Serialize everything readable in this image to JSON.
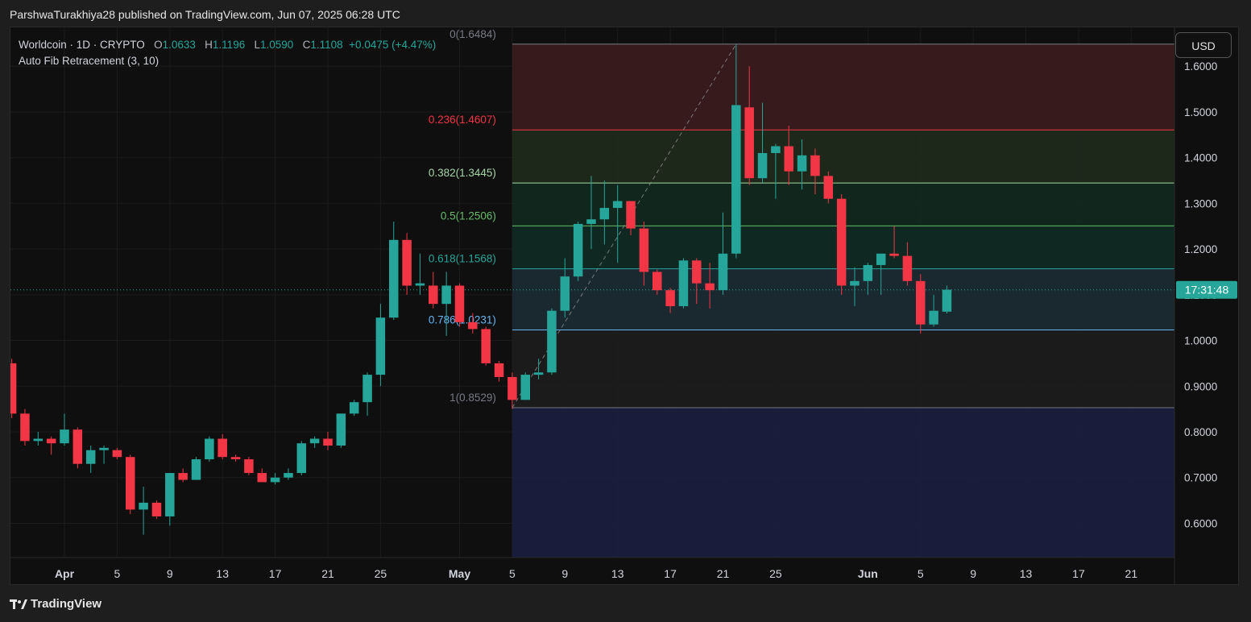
{
  "header": {
    "publisher": "ParshwaTurakhiya28 published on TradingView.com, Jun 07, 2025 06:28 UTC"
  },
  "legend": {
    "symbol": "Worldcoin · 1D · CRYPTO",
    "o_label": "O",
    "o_value": "1.0633",
    "h_label": "H",
    "h_value": "1.1196",
    "l_label": "L",
    "l_value": "1.0590",
    "c_label": "C",
    "c_value": "1.1108",
    "change": "+0.0475 (+4.47%)",
    "indicator": "Auto Fib Retracement (3, 10)"
  },
  "currency_button": "USD",
  "countdown": "17:31:48",
  "footer": {
    "brand": "TradingView",
    "logo": "tradingview-logo-icon"
  },
  "colors": {
    "up": "#26a69a",
    "down": "#f23645",
    "background": "#0f0f0f"
  },
  "chart_data": {
    "type": "candlestick",
    "y_ticks": [
      "0.6000",
      "0.7000",
      "0.8000",
      "0.9000",
      "1.0000",
      "1.1000",
      "1.2000",
      "1.3000",
      "1.4000",
      "1.5000",
      "1.6000"
    ],
    "ylim": [
      0.525,
      1.685
    ],
    "x_ticks": [
      {
        "label": "Apr",
        "day": 0
      },
      {
        "label": "5",
        "day": 4
      },
      {
        "label": "9",
        "day": 8
      },
      {
        "label": "13",
        "day": 12
      },
      {
        "label": "17",
        "day": 16
      },
      {
        "label": "21",
        "day": 20
      },
      {
        "label": "25",
        "day": 24
      },
      {
        "label": "May",
        "day": 30
      },
      {
        "label": "5",
        "day": 34
      },
      {
        "label": "9",
        "day": 38
      },
      {
        "label": "13",
        "day": 42
      },
      {
        "label": "17",
        "day": 46
      },
      {
        "label": "21",
        "day": 50
      },
      {
        "label": "25",
        "day": 54
      },
      {
        "label": "Jun",
        "day": 61
      },
      {
        "label": "5",
        "day": 65
      },
      {
        "label": "9",
        "day": 69
      },
      {
        "label": "13",
        "day": 73
      },
      {
        "label": "17",
        "day": 77
      },
      {
        "label": "21",
        "day": 81
      }
    ],
    "fib": {
      "start_day": 34,
      "end_day": 117,
      "levels": [
        {
          "ratio": "0",
          "price": 1.6484,
          "label": "0(1.6484)",
          "color": "#787b86",
          "fill": "#3a1b1e"
        },
        {
          "ratio": "0.236",
          "price": 1.4607,
          "label": "0.236(1.4607)",
          "color": "#f23645",
          "fill": "#1f2a1c"
        },
        {
          "ratio": "0.382",
          "price": 1.3445,
          "label": "0.382(1.3445)",
          "color": "#a5d6a7",
          "fill": "#12291f"
        },
        {
          "ratio": "0.5",
          "price": 1.2506,
          "label": "0.5(1.2506)",
          "color": "#66bb6a",
          "fill": "#102a24"
        },
        {
          "ratio": "0.618",
          "price": 1.1568,
          "label": "0.618(1.1568)",
          "color": "#26a69a",
          "fill": "#1b2a33"
        },
        {
          "ratio": "0.786",
          "price": 1.0231,
          "label": "0.786(1.0231)",
          "color": "#64b5f6",
          "fill": "#1c1c1e"
        },
        {
          "ratio": "1",
          "price": 0.8529,
          "label": "1(0.8529)",
          "color": "#787b86",
          "fill": "#1a1f3e"
        }
      ],
      "trend_from": {
        "day": 34,
        "price": 0.8529
      },
      "trend_to": {
        "day": 51,
        "price": 1.6484
      }
    },
    "current_price": 1.1108,
    "candles": [
      {
        "d": -4,
        "o": 0.95,
        "h": 0.96,
        "l": 0.83,
        "c": 0.84
      },
      {
        "d": -3,
        "o": 0.84,
        "h": 0.85,
        "l": 0.77,
        "c": 0.78
      },
      {
        "d": -2,
        "o": 0.78,
        "h": 0.8,
        "l": 0.77,
        "c": 0.785
      },
      {
        "d": -1,
        "o": 0.785,
        "h": 0.79,
        "l": 0.75,
        "c": 0.775
      },
      {
        "d": 0,
        "o": 0.775,
        "h": 0.84,
        "l": 0.77,
        "c": 0.805
      },
      {
        "d": 1,
        "o": 0.805,
        "h": 0.81,
        "l": 0.72,
        "c": 0.73
      },
      {
        "d": 2,
        "o": 0.73,
        "h": 0.77,
        "l": 0.71,
        "c": 0.76
      },
      {
        "d": 3,
        "o": 0.76,
        "h": 0.77,
        "l": 0.73,
        "c": 0.765
      },
      {
        "d": 4,
        "o": 0.76,
        "h": 0.765,
        "l": 0.74,
        "c": 0.745
      },
      {
        "d": 5,
        "o": 0.745,
        "h": 0.75,
        "l": 0.62,
        "c": 0.63
      },
      {
        "d": 6,
        "o": 0.63,
        "h": 0.68,
        "l": 0.575,
        "c": 0.645
      },
      {
        "d": 7,
        "o": 0.645,
        "h": 0.65,
        "l": 0.61,
        "c": 0.615
      },
      {
        "d": 8,
        "o": 0.615,
        "h": 0.71,
        "l": 0.595,
        "c": 0.71
      },
      {
        "d": 9,
        "o": 0.71,
        "h": 0.72,
        "l": 0.69,
        "c": 0.695
      },
      {
        "d": 10,
        "o": 0.695,
        "h": 0.745,
        "l": 0.695,
        "c": 0.74
      },
      {
        "d": 11,
        "o": 0.74,
        "h": 0.79,
        "l": 0.735,
        "c": 0.785
      },
      {
        "d": 12,
        "o": 0.785,
        "h": 0.795,
        "l": 0.74,
        "c": 0.745
      },
      {
        "d": 13,
        "o": 0.745,
        "h": 0.75,
        "l": 0.735,
        "c": 0.74
      },
      {
        "d": 14,
        "o": 0.74,
        "h": 0.745,
        "l": 0.705,
        "c": 0.71
      },
      {
        "d": 15,
        "o": 0.71,
        "h": 0.72,
        "l": 0.69,
        "c": 0.69
      },
      {
        "d": 16,
        "o": 0.69,
        "h": 0.71,
        "l": 0.685,
        "c": 0.7
      },
      {
        "d": 17,
        "o": 0.7,
        "h": 0.72,
        "l": 0.695,
        "c": 0.71
      },
      {
        "d": 18,
        "o": 0.71,
        "h": 0.78,
        "l": 0.705,
        "c": 0.775
      },
      {
        "d": 19,
        "o": 0.775,
        "h": 0.79,
        "l": 0.765,
        "c": 0.785
      },
      {
        "d": 20,
        "o": 0.785,
        "h": 0.8,
        "l": 0.76,
        "c": 0.77
      },
      {
        "d": 21,
        "o": 0.77,
        "h": 0.84,
        "l": 0.765,
        "c": 0.84
      },
      {
        "d": 22,
        "o": 0.84,
        "h": 0.87,
        "l": 0.835,
        "c": 0.865
      },
      {
        "d": 23,
        "o": 0.865,
        "h": 0.93,
        "l": 0.835,
        "c": 0.925
      },
      {
        "d": 24,
        "o": 0.925,
        "h": 1.08,
        "l": 0.9,
        "c": 1.05
      },
      {
        "d": 25,
        "o": 1.05,
        "h": 1.26,
        "l": 1.045,
        "c": 1.22
      },
      {
        "d": 26,
        "o": 1.22,
        "h": 1.235,
        "l": 1.1,
        "c": 1.12
      },
      {
        "d": 27,
        "o": 1.12,
        "h": 1.19,
        "l": 1.1,
        "c": 1.125
      },
      {
        "d": 28,
        "o": 1.12,
        "h": 1.15,
        "l": 1.07,
        "c": 1.08
      },
      {
        "d": 29,
        "o": 1.08,
        "h": 1.15,
        "l": 1.01,
        "c": 1.12
      },
      {
        "d": 30,
        "o": 1.12,
        "h": 1.125,
        "l": 1.03,
        "c": 1.04
      },
      {
        "d": 31,
        "o": 1.04,
        "h": 1.06,
        "l": 1.015,
        "c": 1.025
      },
      {
        "d": 32,
        "o": 1.025,
        "h": 1.03,
        "l": 0.945,
        "c": 0.95
      },
      {
        "d": 33,
        "o": 0.95,
        "h": 0.955,
        "l": 0.91,
        "c": 0.92
      },
      {
        "d": 34,
        "o": 0.92,
        "h": 0.93,
        "l": 0.85,
        "c": 0.87
      },
      {
        "d": 35,
        "o": 0.87,
        "h": 0.93,
        "l": 0.87,
        "c": 0.925
      },
      {
        "d": 36,
        "o": 0.925,
        "h": 0.96,
        "l": 0.915,
        "c": 0.93
      },
      {
        "d": 37,
        "o": 0.93,
        "h": 1.07,
        "l": 0.925,
        "c": 1.065
      },
      {
        "d": 38,
        "o": 1.065,
        "h": 1.18,
        "l": 1.05,
        "c": 1.14
      },
      {
        "d": 39,
        "o": 1.14,
        "h": 1.26,
        "l": 1.13,
        "c": 1.255
      },
      {
        "d": 40,
        "o": 1.255,
        "h": 1.36,
        "l": 1.2,
        "c": 1.265
      },
      {
        "d": 41,
        "o": 1.265,
        "h": 1.35,
        "l": 1.21,
        "c": 1.29
      },
      {
        "d": 42,
        "o": 1.29,
        "h": 1.34,
        "l": 1.17,
        "c": 1.305
      },
      {
        "d": 43,
        "o": 1.305,
        "h": 1.3,
        "l": 1.23,
        "c": 1.245
      },
      {
        "d": 44,
        "o": 1.245,
        "h": 1.26,
        "l": 1.12,
        "c": 1.15
      },
      {
        "d": 45,
        "o": 1.15,
        "h": 1.155,
        "l": 1.1,
        "c": 1.11
      },
      {
        "d": 46,
        "o": 1.11,
        "h": 1.115,
        "l": 1.06,
        "c": 1.075
      },
      {
        "d": 47,
        "o": 1.075,
        "h": 1.18,
        "l": 1.07,
        "c": 1.175
      },
      {
        "d": 48,
        "o": 1.175,
        "h": 1.18,
        "l": 1.08,
        "c": 1.125
      },
      {
        "d": 49,
        "o": 1.125,
        "h": 1.17,
        "l": 1.07,
        "c": 1.11
      },
      {
        "d": 50,
        "o": 1.11,
        "h": 1.28,
        "l": 1.1,
        "c": 1.19
      },
      {
        "d": 51,
        "o": 1.19,
        "h": 1.648,
        "l": 1.18,
        "c": 1.515
      },
      {
        "d": 52,
        "o": 1.51,
        "h": 1.6,
        "l": 1.34,
        "c": 1.355
      },
      {
        "d": 53,
        "o": 1.355,
        "h": 1.52,
        "l": 1.345,
        "c": 1.41
      },
      {
        "d": 54,
        "o": 1.41,
        "h": 1.43,
        "l": 1.31,
        "c": 1.425
      },
      {
        "d": 55,
        "o": 1.425,
        "h": 1.47,
        "l": 1.34,
        "c": 1.37
      },
      {
        "d": 56,
        "o": 1.37,
        "h": 1.44,
        "l": 1.33,
        "c": 1.405
      },
      {
        "d": 57,
        "o": 1.405,
        "h": 1.42,
        "l": 1.32,
        "c": 1.36
      },
      {
        "d": 58,
        "o": 1.36,
        "h": 1.37,
        "l": 1.3,
        "c": 1.31
      },
      {
        "d": 59,
        "o": 1.31,
        "h": 1.32,
        "l": 1.1,
        "c": 1.12
      },
      {
        "d": 60,
        "o": 1.12,
        "h": 1.16,
        "l": 1.075,
        "c": 1.13
      },
      {
        "d": 61,
        "o": 1.13,
        "h": 1.17,
        "l": 1.1,
        "c": 1.165
      },
      {
        "d": 62,
        "o": 1.165,
        "h": 1.19,
        "l": 1.1,
        "c": 1.19
      },
      {
        "d": 63,
        "o": 1.19,
        "h": 1.25,
        "l": 1.18,
        "c": 1.185
      },
      {
        "d": 64,
        "o": 1.185,
        "h": 1.215,
        "l": 1.12,
        "c": 1.13
      },
      {
        "d": 65,
        "o": 1.13,
        "h": 1.145,
        "l": 1.015,
        "c": 1.035
      },
      {
        "d": 66,
        "o": 1.035,
        "h": 1.1,
        "l": 1.03,
        "c": 1.065
      },
      {
        "d": 67,
        "o": 1.063,
        "h": 1.12,
        "l": 1.059,
        "c": 1.111
      }
    ]
  }
}
